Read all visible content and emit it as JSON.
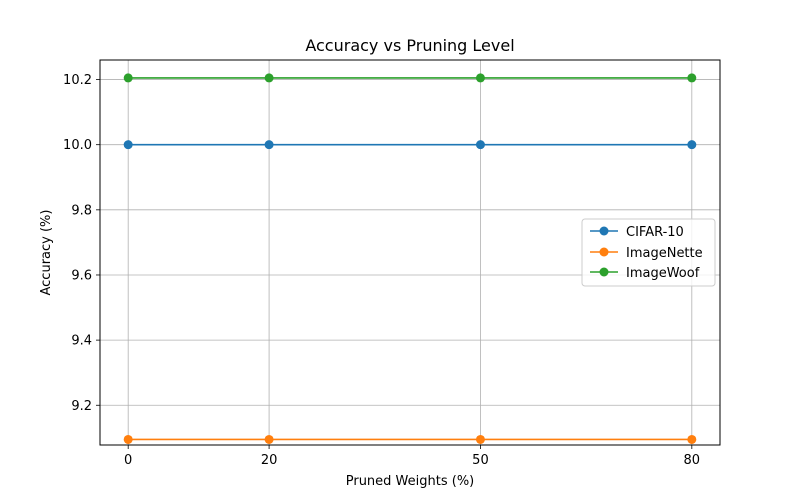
{
  "chart_data": {
    "type": "line",
    "title": "Accuracy vs Pruning Level",
    "xlabel": "Pruned Weights (%)",
    "ylabel": "Accuracy (%)",
    "x": [
      0,
      20,
      50,
      80
    ],
    "xticks": [
      "0",
      "20",
      "50",
      "80"
    ],
    "yticks": [
      "9.2",
      "9.4",
      "9.6",
      "9.8",
      "10.0",
      "10.2"
    ],
    "ylim": [
      9.078,
      10.26
    ],
    "xlim": [
      -4,
      84
    ],
    "grid": true,
    "legend_position": "center-right",
    "series": [
      {
        "name": "CIFAR-10",
        "color": "#1f77b4",
        "marker": "circle",
        "values": [
          10.0,
          10.0,
          10.0,
          10.0
        ]
      },
      {
        "name": "ImageNette",
        "color": "#ff7f0e",
        "marker": "circle",
        "values": [
          9.095,
          9.095,
          9.095,
          9.095
        ]
      },
      {
        "name": "ImageWoof",
        "color": "#2ca02c",
        "marker": "circle",
        "values": [
          10.205,
          10.205,
          10.205,
          10.205
        ]
      }
    ]
  }
}
